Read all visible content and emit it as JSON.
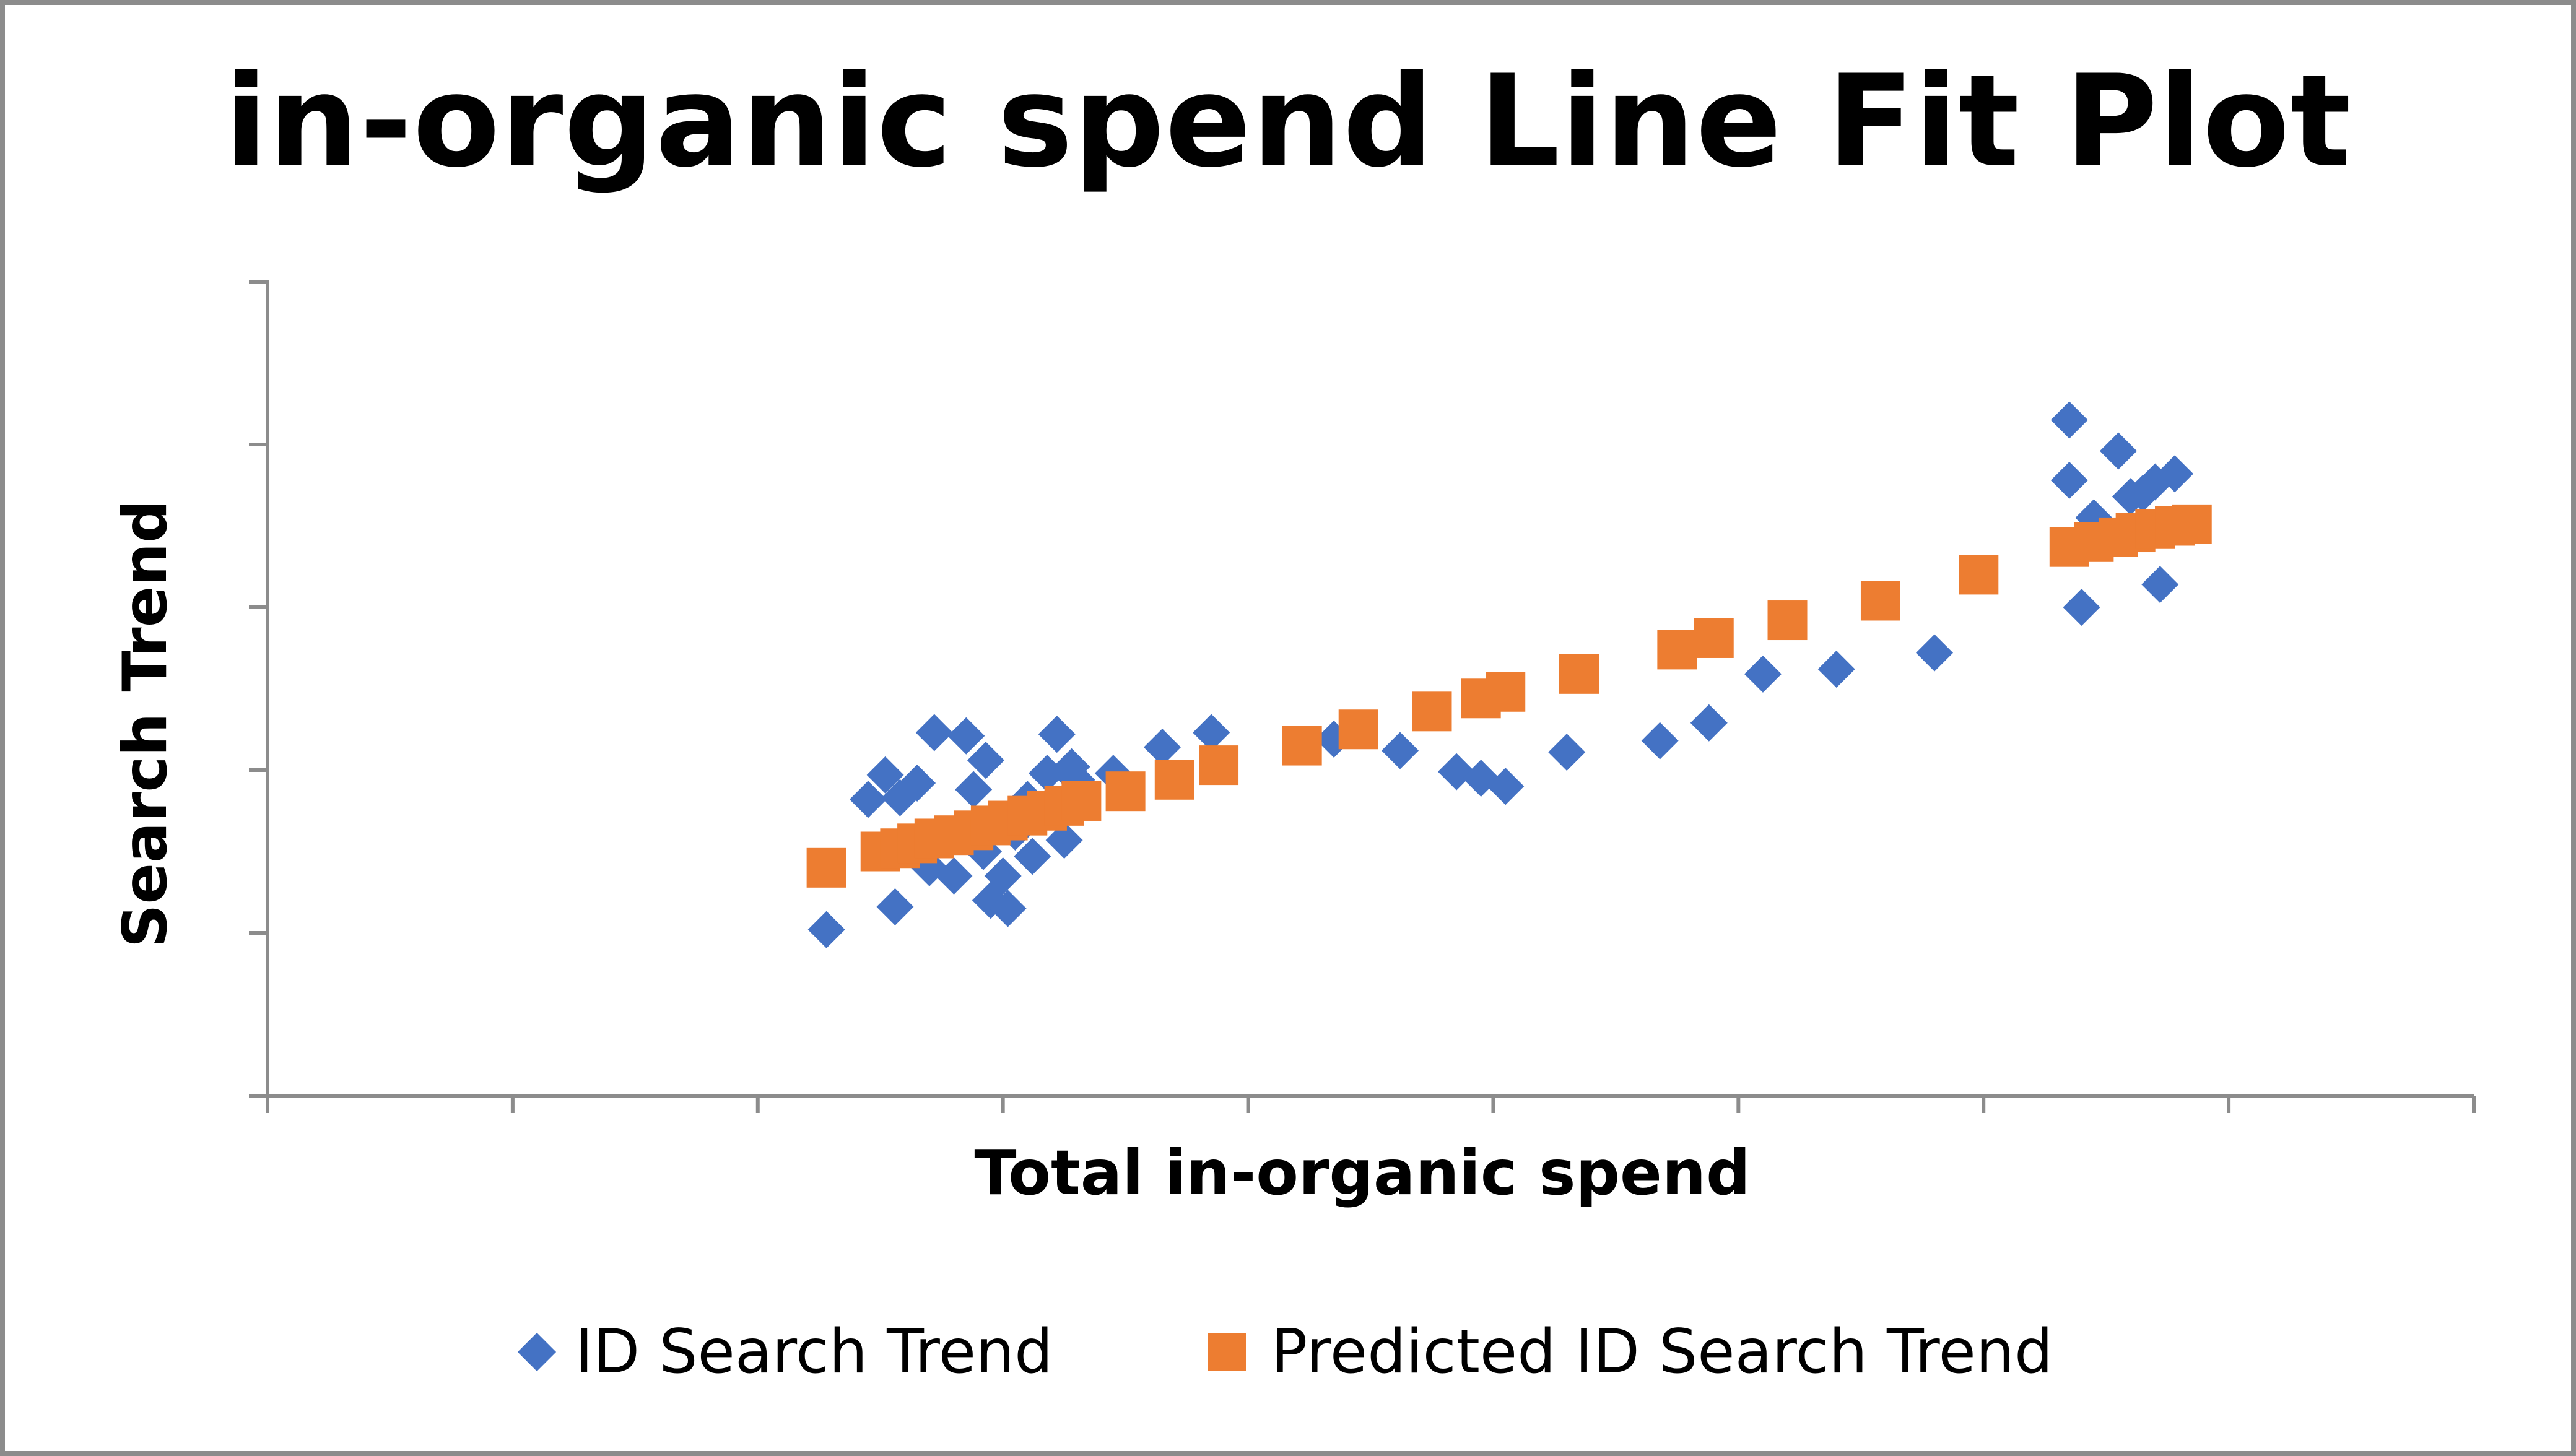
{
  "chart_data": {
    "type": "scatter",
    "title": "in-organic spend Line Fit Plot",
    "xlabel": "Total in-organic  spend",
    "ylabel": "Search Trend",
    "xlim": [
      0,
      9
    ],
    "ylim": [
      0,
      5
    ],
    "x_ticks": [
      0,
      1,
      2,
      3,
      4,
      5,
      6,
      7,
      8,
      9
    ],
    "y_ticks": [
      0,
      1,
      2,
      3,
      4,
      5
    ],
    "tick_labels_visible": false,
    "grid": false,
    "legend_position": "bottom",
    "series": [
      {
        "name": "ID Search Trend",
        "marker": "diamond",
        "color": "#4472c4",
        "points": [
          [
            2.28,
            1.02
          ],
          [
            2.56,
            1.16
          ],
          [
            2.45,
            1.82
          ],
          [
            2.52,
            1.97
          ],
          [
            2.58,
            1.83
          ],
          [
            2.65,
            1.92
          ],
          [
            2.72,
            2.23
          ],
          [
            2.78,
            1.6
          ],
          [
            2.85,
            2.21
          ],
          [
            2.88,
            1.88
          ],
          [
            2.93,
            2.06
          ],
          [
            2.7,
            1.4
          ],
          [
            2.8,
            1.35
          ],
          [
            2.92,
            1.5
          ],
          [
            3.0,
            1.35
          ],
          [
            2.95,
            1.2
          ],
          [
            3.02,
            1.15
          ],
          [
            3.05,
            1.62
          ],
          [
            3.1,
            1.82
          ],
          [
            3.12,
            1.47
          ],
          [
            3.18,
            1.98
          ],
          [
            3.22,
            2.22
          ],
          [
            3.28,
            2.02
          ],
          [
            3.25,
            1.57
          ],
          [
            3.3,
            1.94
          ],
          [
            3.45,
            1.98
          ],
          [
            3.65,
            2.14
          ],
          [
            3.85,
            2.23
          ],
          [
            4.35,
            2.19
          ],
          [
            4.62,
            2.12
          ],
          [
            4.85,
            1.99
          ],
          [
            4.95,
            1.95
          ],
          [
            5.05,
            1.9
          ],
          [
            5.3,
            2.11
          ],
          [
            5.68,
            2.18
          ],
          [
            5.88,
            2.29
          ],
          [
            6.1,
            2.59
          ],
          [
            6.4,
            2.62
          ],
          [
            6.8,
            2.72
          ],
          [
            7.35,
            4.15
          ],
          [
            7.35,
            3.78
          ],
          [
            7.4,
            3.0
          ],
          [
            7.45,
            3.55
          ],
          [
            7.55,
            3.96
          ],
          [
            7.6,
            3.68
          ],
          [
            7.65,
            3.7
          ],
          [
            7.7,
            3.77
          ],
          [
            7.72,
            3.14
          ],
          [
            7.78,
            3.82
          ]
        ]
      },
      {
        "name": "Predicted ID Search Trend",
        "marker": "square",
        "color": "#ed7d31",
        "points": [
          [
            2.28,
            1.4
          ],
          [
            2.5,
            1.5
          ],
          [
            2.58,
            1.52
          ],
          [
            2.65,
            1.55
          ],
          [
            2.72,
            1.58
          ],
          [
            2.8,
            1.6
          ],
          [
            2.88,
            1.63
          ],
          [
            2.95,
            1.66
          ],
          [
            3.02,
            1.69
          ],
          [
            3.1,
            1.72
          ],
          [
            3.18,
            1.75
          ],
          [
            3.25,
            1.78
          ],
          [
            3.32,
            1.81
          ],
          [
            3.5,
            1.87
          ],
          [
            3.7,
            1.94
          ],
          [
            3.88,
            2.03
          ],
          [
            4.22,
            2.15
          ],
          [
            4.45,
            2.25
          ],
          [
            4.75,
            2.36
          ],
          [
            4.95,
            2.44
          ],
          [
            5.05,
            2.48
          ],
          [
            5.35,
            2.59
          ],
          [
            5.75,
            2.74
          ],
          [
            5.9,
            2.81
          ],
          [
            6.2,
            2.92
          ],
          [
            6.58,
            3.04
          ],
          [
            6.98,
            3.2
          ],
          [
            7.35,
            3.37
          ],
          [
            7.45,
            3.4
          ],
          [
            7.55,
            3.43
          ],
          [
            7.62,
            3.46
          ],
          [
            7.7,
            3.48
          ],
          [
            7.78,
            3.5
          ],
          [
            7.85,
            3.51
          ]
        ]
      }
    ]
  }
}
